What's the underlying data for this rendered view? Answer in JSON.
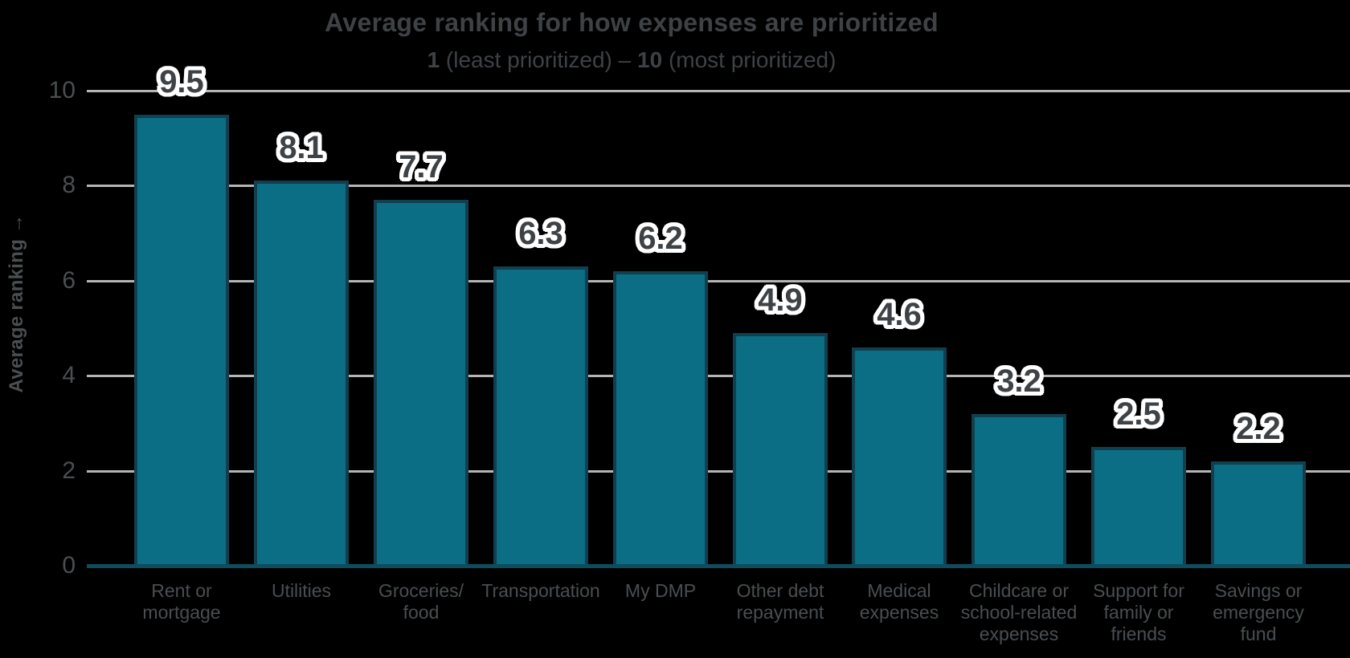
{
  "title": "Average ranking for how expenses are prioritized",
  "subtitle": {
    "b1": "1",
    "t1": " (least prioritized) – ",
    "b2": "10",
    "t2": " (most prioritized)"
  },
  "chart_data": {
    "type": "bar",
    "title": "Average ranking for how expenses are prioritized",
    "subtitle": "1 (least prioritized) – 10 (most prioritized)",
    "categories": [
      "Rent or\nmortgage",
      "Utilities",
      "Groceries/\nfood",
      "Transportation",
      "My DMP",
      "Other debt\nrepayment",
      "Medical\nexpenses",
      "Childcare or\nschool-related\nexpenses",
      "Support for\nfamily or\nfriends",
      "Savings or\nemergency\nfund"
    ],
    "values": [
      9.5,
      8.1,
      7.7,
      6.3,
      6.2,
      4.9,
      4.6,
      3.2,
      2.5,
      2.2
    ],
    "value_labels": [
      "9.5",
      "8.1",
      "7.7",
      "6.3",
      "6.2",
      "4.9",
      "4.6",
      "3.2",
      "2.5",
      "2.2"
    ],
    "xlabel": "",
    "ylabel": "Average ranking →",
    "ylim": [
      0,
      10
    ],
    "yticks": [
      0,
      2,
      4,
      6,
      8,
      10
    ],
    "grid": "horizontal",
    "legend": "none",
    "colors": {
      "background": "#000000",
      "bar_fill": "#0c6e84",
      "bar_border": "#123f4f",
      "baseline": "#0d4d5e",
      "gridline": "#b5b5b5",
      "title_text": "#3e4245",
      "tick_text": "#4b4e50",
      "xlabel_text": "#4a4e51",
      "value_text": "#3e4245",
      "value_outline": "#ffffff"
    }
  }
}
